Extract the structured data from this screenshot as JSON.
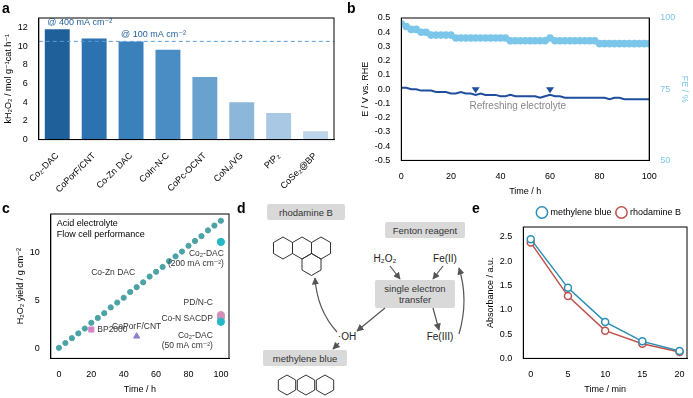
{
  "chart_data": [
    {
      "panel": "a",
      "type": "bar",
      "y_label": "kH₂O₂ / mol g⁻¹cat h⁻¹",
      "categories": [
        "Co₂-DAC",
        "CoPorF/CNT",
        "Co-Zn DAC",
        "CoIn-N-C",
        "CoPc-OCNT",
        "CoN₄/VG",
        "PtP₂",
        "CoSe₂@BP"
      ],
      "values": [
        11.8,
        10.8,
        10.5,
        9.6,
        6.7,
        4.0,
        2.85,
        0.9
      ],
      "colors": [
        "#1f5f9a",
        "#2d72b0",
        "#3a80bb",
        "#4a8dc4",
        "#6aa2cf",
        "#8db7da",
        "#a9c8e3",
        "#bcd4ea"
      ],
      "ylim": [
        0,
        13
      ],
      "yticks": [
        0,
        2,
        4,
        6,
        8,
        10,
        12
      ],
      "reference_line": {
        "value": 10.5,
        "line_style": "dashed"
      },
      "annotations": [
        {
          "text": "@ 400 mA cm⁻²",
          "category": "Co₂-DAC"
        },
        {
          "text": "@ 100 mA cm⁻²",
          "category": "Co-Zn DAC"
        }
      ],
      "grid": false
    },
    {
      "panel": "b",
      "type": "line",
      "x_label": "Time / h",
      "y_label": "E / V vs. RHE",
      "y2_label": "FE / %",
      "x": [
        0,
        2,
        4,
        6,
        8,
        10,
        12,
        14,
        16,
        18,
        20,
        22,
        24,
        26,
        28,
        30,
        32,
        34,
        36,
        38,
        40,
        42,
        44,
        46,
        48,
        50,
        52,
        54,
        56,
        58,
        60,
        62,
        64,
        66,
        68,
        70,
        72,
        74,
        76,
        78,
        80,
        82,
        84,
        86,
        88,
        90,
        92,
        94,
        96,
        98,
        100
      ],
      "series": [
        {
          "color": "#1f4e9c",
          "marker": "none",
          "type": "line",
          "values": [
            0.01,
            0.01,
            0.0,
            0.0,
            -0.01,
            -0.01,
            -0.01,
            -0.02,
            -0.02,
            -0.02,
            -0.03,
            -0.03,
            -0.02,
            -0.03,
            -0.03,
            -0.04,
            -0.03,
            -0.04,
            -0.04,
            -0.04,
            -0.05,
            -0.05,
            -0.04,
            -0.05,
            -0.05,
            -0.05,
            -0.05,
            -0.05,
            -0.06,
            -0.05,
            -0.04,
            -0.05,
            -0.05,
            -0.06,
            -0.06,
            -0.06,
            -0.06,
            -0.06,
            -0.06,
            -0.06,
            -0.06,
            -0.06,
            -0.07,
            -0.06,
            -0.06,
            -0.07,
            -0.07,
            -0.07,
            -0.07,
            -0.07,
            -0.07
          ]
        },
        {
          "color": "#7cc6ea",
          "marker": "circle",
          "type": "scatter",
          "axis": "y2",
          "values": [
            98,
            97,
            96,
            96,
            95,
            95,
            94,
            94,
            94,
            94,
            94,
            93,
            93,
            93,
            93,
            93,
            93,
            93,
            93,
            93,
            93,
            93,
            92,
            92,
            92,
            92,
            92,
            92,
            92,
            92,
            93,
            92,
            92,
            92,
            92,
            92,
            92,
            92,
            92,
            92,
            91,
            91,
            91,
            91,
            91,
            91,
            91,
            91,
            91,
            91,
            91
          ]
        }
      ],
      "xlim": [
        0,
        100
      ],
      "xticks": [
        0,
        20,
        40,
        60,
        80,
        100
      ],
      "ylim": [
        -0.5,
        0.5
      ],
      "yticks": [
        -0.5,
        -0.4,
        -0.3,
        -0.2,
        -0.1,
        {
          "value": 0,
          "label": "0.0"
        },
        0.1,
        0.2,
        0.3,
        0.4,
        0.5
      ],
      "y2lim": [
        50,
        100
      ],
      "y2ticks": [
        50,
        75,
        100
      ],
      "annotations": [
        {
          "text": "Refreshing electrolyte",
          "x": 47,
          "y": -0.12
        }
      ],
      "events": [
        {
          "x": 30,
          "y": -0.015
        },
        {
          "x": 60,
          "y": -0.015
        }
      ],
      "grid": false
    },
    {
      "panel": "c",
      "type": "scatter",
      "x_label": "Time / h",
      "y_label": "H₂O₂ yield / g cm⁻²",
      "annotations": [
        "Acid electrolyte",
        "Flow cell performance"
      ],
      "series": [
        {
          "name": "Co-Zn DAC",
          "color": "#4ba3a6",
          "marker": "circle",
          "x": [
            0,
            4,
            8,
            12,
            16,
            20,
            24,
            28,
            32,
            36,
            40,
            44,
            48,
            52,
            56,
            60,
            64,
            68,
            72,
            76,
            80,
            84,
            88,
            92,
            96,
            100
          ],
          "values": [
            0.1,
            0.6,
            1.1,
            1.6,
            2.1,
            2.7,
            3.2,
            3.7,
            4.3,
            4.8,
            5.3,
            5.9,
            6.4,
            6.9,
            7.5,
            8.0,
            8.5,
            9.1,
            9.6,
            10.1,
            10.7,
            11.2,
            11.7,
            12.3,
            12.8,
            13.3
          ]
        },
        {
          "name": "Co₂-DAC (200 mA cm⁻²)",
          "color": "#25b6c8",
          "marker": "circle",
          "x": [
            100
          ],
          "values": [
            11.1
          ]
        },
        {
          "name": "Co₂-DAC (50 mA cm⁻²)",
          "color": "#25b6c8",
          "marker": "circle",
          "x": [
            100
          ],
          "values": [
            2.8
          ]
        },
        {
          "name": "PD/N-C",
          "color": "#d48fb8",
          "marker": "circle",
          "x": [
            100
          ],
          "values": [
            3.5
          ]
        },
        {
          "name": "Co-N SACDP",
          "color": "#a9a9c8",
          "marker": "circle",
          "x": [
            100
          ],
          "values": [
            3.2
          ]
        },
        {
          "name": "BP2000",
          "color": "#d783c9",
          "marker": "square",
          "x": [
            20
          ],
          "values": [
            2.0
          ]
        },
        {
          "name": "CoPorF/CNT",
          "color": "#8a7fd0",
          "marker": "triangle",
          "x": [
            48
          ],
          "values": [
            1.3
          ]
        }
      ],
      "xlim": [
        -5,
        105
      ],
      "xticks": [
        0,
        20,
        40,
        60,
        80,
        100
      ],
      "ylim": [
        -1,
        14
      ],
      "yticks": [
        0,
        5,
        10
      ],
      "grid": false
    },
    {
      "panel": "e",
      "type": "line",
      "x_label": "Time / min",
      "y_label": "Absorbance / a.u.",
      "x": [
        0,
        5,
        10,
        15,
        20
      ],
      "series": [
        {
          "name": "methylene blue",
          "color": "#2a8fb5",
          "marker": "circle",
          "values": [
            2.45,
            1.45,
            0.75,
            0.35,
            0.15
          ]
        },
        {
          "name": "rhodamine B",
          "color": "#c0504d",
          "marker": "circle",
          "values": [
            2.38,
            1.28,
            0.57,
            0.3,
            0.13
          ]
        }
      ],
      "xlim": [
        -1,
        21
      ],
      "xticks": [
        0,
        5,
        10,
        15,
        20
      ],
      "ylim": [
        0,
        2.7
      ],
      "yticks": [
        {
          "value": 0,
          "label": "0.0"
        },
        0.5,
        {
          "value": 1,
          "label": "1.0"
        },
        1.5,
        {
          "value": 2,
          "label": "2.0"
        },
        2.5
      ],
      "legend": "top-right",
      "grid": false
    }
  ],
  "diagram": {
    "panel": "d",
    "boxes": [
      "rhodamine B",
      "Fenton reagent",
      "methylene blue",
      "single electron transfer"
    ],
    "species": [
      "H₂O₂",
      "Fe(II)",
      "·OH",
      "Fe(III)"
    ]
  }
}
